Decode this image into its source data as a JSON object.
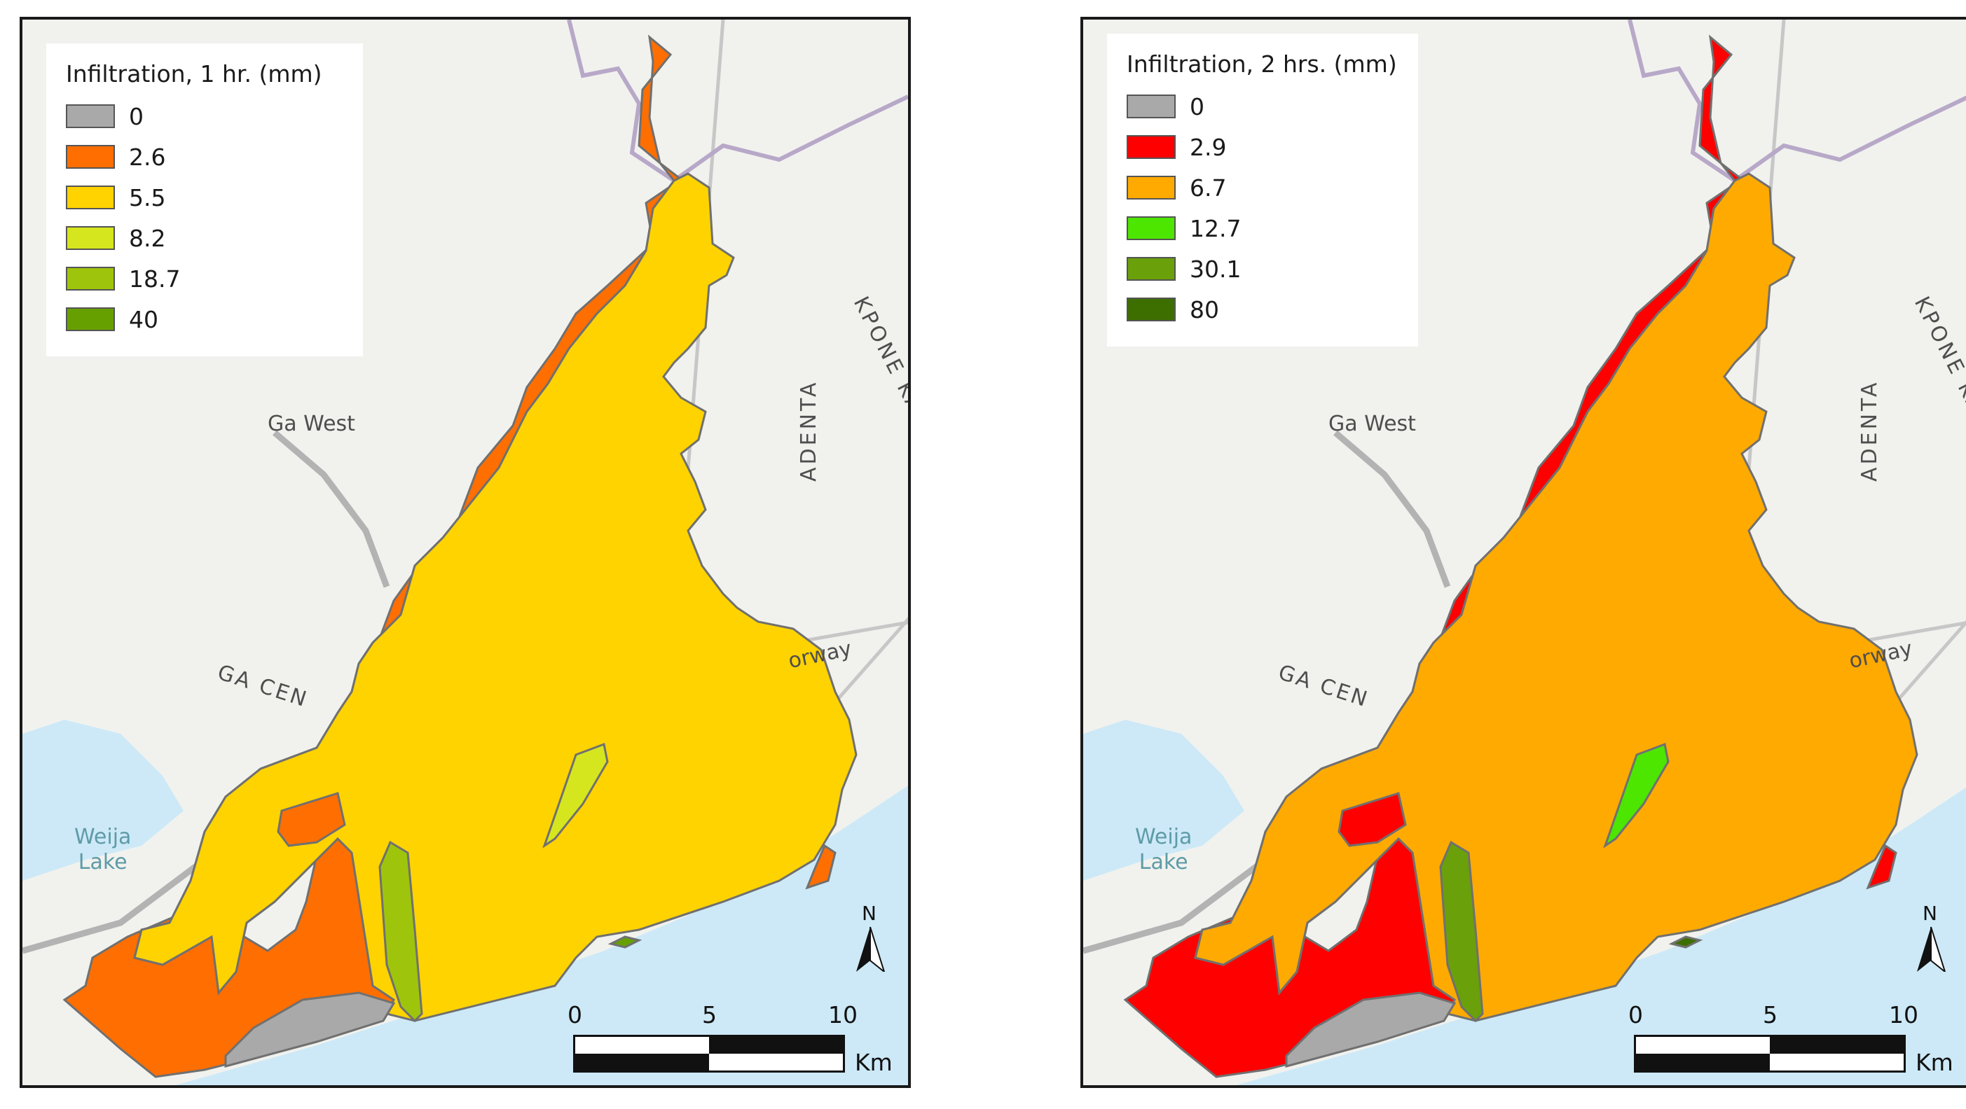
{
  "maps": [
    {
      "legend_title": "Infiltration, 1 hr. (mm)",
      "classes": [
        {
          "label": "0",
          "color": "#a9a9a9"
        },
        {
          "label": "2.6",
          "color": "#ff6e00"
        },
        {
          "label": "5.5",
          "color": "#ffd300"
        },
        {
          "label": "8.2",
          "color": "#d6e61e"
        },
        {
          "label": "18.7",
          "color": "#9ec50b"
        },
        {
          "label": "40",
          "color": "#66a000"
        }
      ]
    },
    {
      "legend_title": "Infiltration, 2 hrs. (mm)",
      "classes": [
        {
          "label": "0",
          "color": "#a9a9a9"
        },
        {
          "label": "2.9",
          "color": "#ff0000"
        },
        {
          "label": "6.7",
          "color": "#ffaa00"
        },
        {
          "label": "12.7",
          "color": "#4ce600"
        },
        {
          "label": "30.1",
          "color": "#6aa00a"
        },
        {
          "label": "80",
          "color": "#3d6e00"
        }
      ]
    }
  ],
  "place_labels": {
    "ga_west": "Ga West",
    "ga_cen": "GA CEN",
    "adenta": "ADENTA",
    "kpone": "KPONE KATAMA",
    "weija": "Weija",
    "lake": "Lake",
    "motorway": "orway"
  },
  "north_arrow": "N",
  "scale_bar": {
    "ticks": [
      "0",
      "5",
      "10"
    ],
    "unit": "Km"
  },
  "colors": {
    "sea": "#cde9f7",
    "land": "#f1f2ee",
    "boundary": "#6b6b6b"
  }
}
